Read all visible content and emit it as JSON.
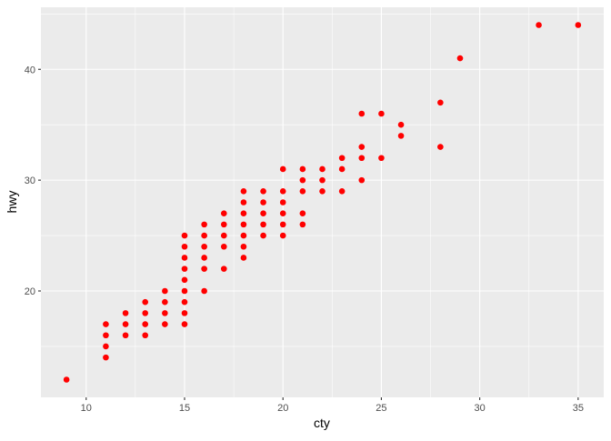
{
  "chart_data": {
    "type": "scatter",
    "title": "",
    "xlabel": "cty",
    "ylabel": "hwy",
    "xlim": [
      7.7,
      36.3
    ],
    "ylim": [
      10.4,
      45.6
    ],
    "x_ticks": [
      10,
      15,
      20,
      25,
      30,
      35
    ],
    "y_ticks": [
      20,
      30,
      40
    ],
    "grid": true,
    "point_color": "#FF0000",
    "panel_color": "#EBEBEB",
    "points_by_x": {
      "9": [
        12
      ],
      "11": [
        14,
        15,
        16,
        17
      ],
      "12": [
        16,
        17,
        18
      ],
      "13": [
        16,
        17,
        18,
        19
      ],
      "14": [
        17,
        18,
        19,
        20
      ],
      "15": [
        17,
        18,
        19,
        20,
        21,
        22,
        23,
        24,
        25
      ],
      "16": [
        20,
        22,
        23,
        24,
        25,
        26
      ],
      "17": [
        22,
        24,
        25,
        26,
        27
      ],
      "18": [
        23,
        24,
        25,
        26,
        27,
        28,
        29
      ],
      "19": [
        25,
        26,
        27,
        28,
        29
      ],
      "20": [
        25,
        26,
        27,
        28,
        29,
        31
      ],
      "21": [
        26,
        27,
        29,
        30,
        31
      ],
      "22": [
        29,
        30,
        31
      ],
      "23": [
        29,
        31,
        32
      ],
      "24": [
        30,
        32,
        33,
        36
      ],
      "25": [
        32,
        36
      ],
      "26": [
        34,
        35
      ],
      "28": [
        33,
        37
      ],
      "29": [
        41
      ],
      "33": [
        44
      ],
      "35": [
        44
      ]
    }
  }
}
